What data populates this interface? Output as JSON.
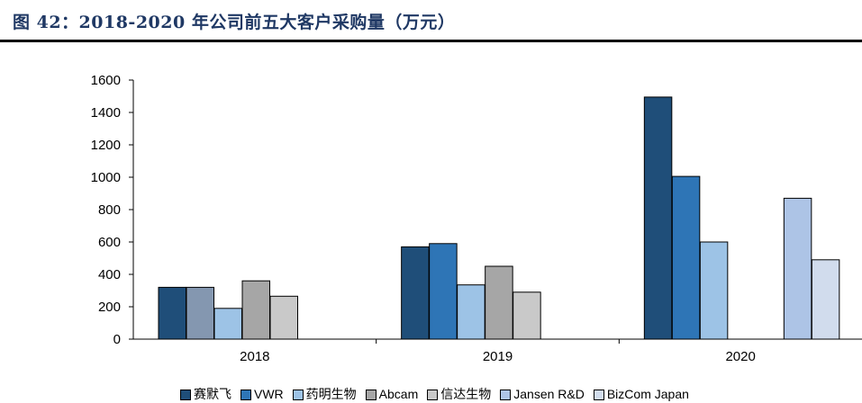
{
  "figure_title": "图 42：2018-2020 年公司前五大客户采购量（万元）",
  "chart_data": {
    "type": "bar",
    "categories": [
      "2018",
      "2019",
      "2020"
    ],
    "series": [
      {
        "name": "赛默飞",
        "color": "#1f4e79",
        "values": [
          320,
          570,
          1495
        ]
      },
      {
        "name": "VWR",
        "color": "#2e75b6",
        "values": [
          320,
          590,
          1005
        ]
      },
      {
        "name": "药明生物",
        "color": "#9dc3e6",
        "values": [
          190,
          335,
          600
        ]
      },
      {
        "name": "Abcam",
        "color": "#a6a6a6",
        "values": [
          360,
          450,
          null
        ]
      },
      {
        "name": "信达生物",
        "color": "#c9c9c9",
        "values": [
          265,
          290,
          null
        ]
      },
      {
        "name": "Jansen R&D",
        "color": "#adc4e6",
        "values": [
          null,
          null,
          870
        ]
      },
      {
        "name": "BizCom Japan",
        "color": "#d1dced",
        "values": [
          null,
          null,
          490
        ]
      }
    ],
    "bar_colors_by_year": {
      "2018": [
        "#1f4e79",
        "#8497b0",
        "#9dc3e6",
        "#a6a6a6",
        "#c9c9c9",
        null,
        null
      ]
    },
    "ylim": [
      0,
      1600
    ],
    "yticks": [
      0,
      200,
      400,
      600,
      800,
      1000,
      1200,
      1400,
      1600
    ],
    "xlabel": "",
    "ylabel": "",
    "grid": false,
    "legend_position": "bottom"
  }
}
